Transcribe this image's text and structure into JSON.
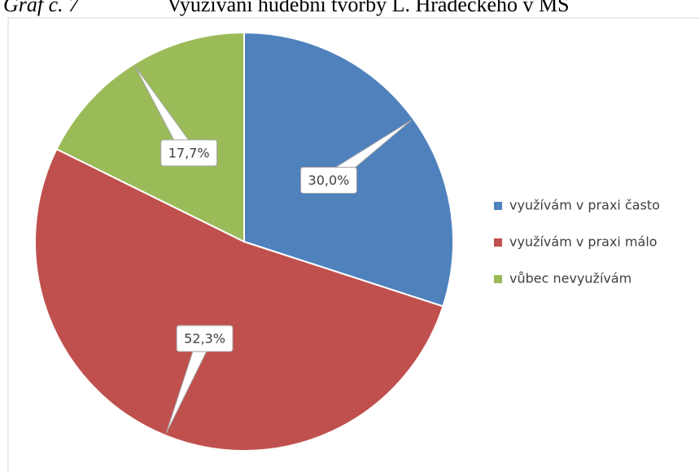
{
  "chart_data": {
    "type": "pie",
    "title_prefix": "Graf č. 7",
    "title": "Využívání hudební tvorby L. Hradeckého v MŠ",
    "categories": [
      "využívám v praxi často",
      "využívám v praxi málo",
      "vůbec nevyužívám"
    ],
    "values": [
      30.0,
      52.3,
      17.7
    ],
    "value_labels": [
      "30,0%",
      "52,3%",
      "17,7%"
    ],
    "colors": [
      "#4f81bd",
      "#c0504d",
      "#9bbb59"
    ],
    "legend": "right"
  }
}
